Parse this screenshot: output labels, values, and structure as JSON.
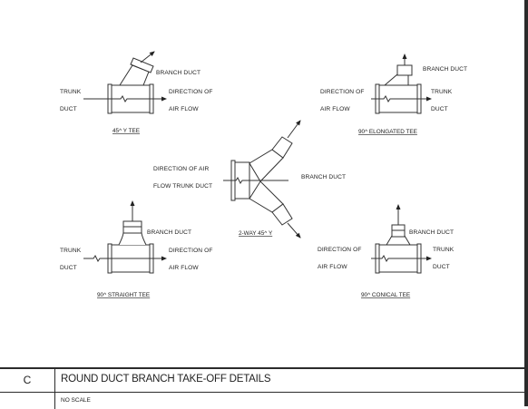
{
  "details": {
    "y_tee": {
      "title": "45^ Y TEE",
      "branch": "BRANCH DUCT",
      "trunk_1": "TRUNK",
      "trunk_2": "DUCT",
      "dir_1": "DIRECTION OF",
      "dir_2": "AIR FLOW"
    },
    "elongated_tee": {
      "title": "90^ ELONGATED TEE",
      "branch": "BRANCH DUCT",
      "dir_1": "DIRECTION OF",
      "dir_2": "AIR FLOW",
      "trunk_1": "TRUNK",
      "trunk_2": "DUCT"
    },
    "two_way_y": {
      "title": "2-WAY 45^ Y",
      "dir_1": "DIRECTION OF AIR",
      "dir_2": "FLOW TRUNK DUCT",
      "branch": "BRANCH DUCT"
    },
    "straight_tee": {
      "title": "90^ STRAIGHT TEE",
      "branch": "BRANCH DUCT",
      "trunk_1": "TRUNK",
      "trunk_2": "DUCT",
      "dir_1": "DIRECTION OF",
      "dir_2": "AIR FLOW"
    },
    "conical_tee": {
      "title": "90^ CONICAL TEE",
      "branch": "BRANCH DUCT",
      "dir_1": "DIRECTION OF",
      "dir_2": "AIR FLOW",
      "trunk_1": "TRUNK",
      "trunk_2": "DUCT"
    }
  },
  "title_block": {
    "detail_letter": "C",
    "title": "ROUND DUCT BRANCH TAKE-OFF DETAILS",
    "scale": "NO SCALE"
  }
}
